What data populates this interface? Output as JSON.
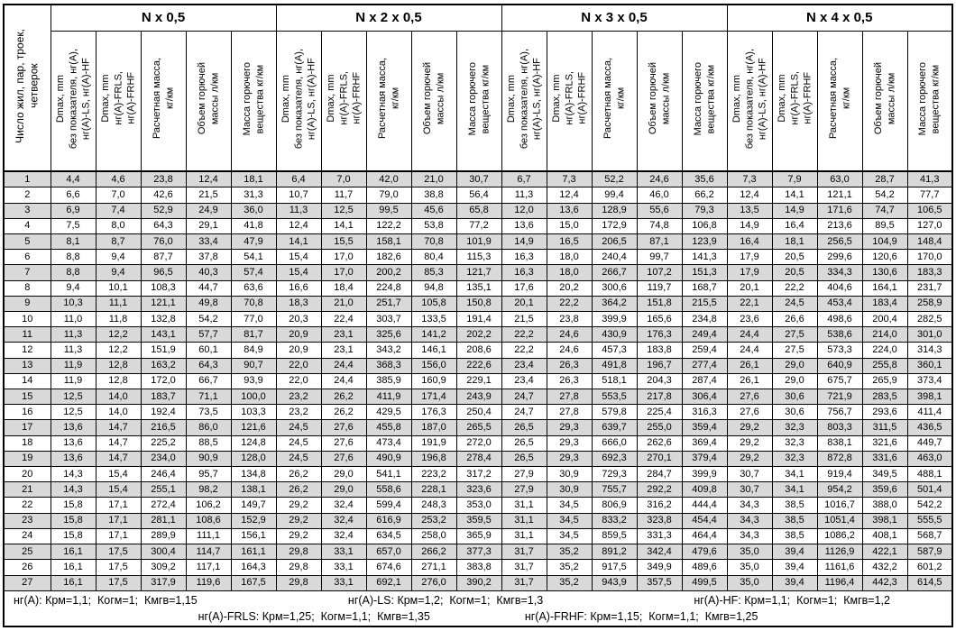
{
  "header": {
    "corner": "Число жил, пар, троек,\nчетверок",
    "groups": [
      "N x 0,5",
      "N x 2 x 0,5",
      "N x 3 x 0,5",
      "N x 4 x 0,5"
    ],
    "subcols": [
      "Dmax, mm\nбез показателя, нг(А),\nнг(А)-LS, нг(А)-HF",
      "Dmax, mm\nнг(А)-FRLS,\nнг(А)-FRHF",
      "Расчетная масса,\nкг/км",
      "Объем горючей\nмассы л/км",
      "Масса горючего\nвещества кг/км"
    ]
  },
  "rows": [
    [
      "1",
      "4,4",
      "4,6",
      "23,8",
      "12,4",
      "18,1",
      "6,4",
      "7,0",
      "42,0",
      "21,0",
      "30,7",
      "6,7",
      "7,3",
      "52,2",
      "24,6",
      "35,6",
      "7,3",
      "7,9",
      "63,0",
      "28,7",
      "41,3"
    ],
    [
      "2",
      "6,6",
      "7,0",
      "42,6",
      "21,5",
      "31,3",
      "10,7",
      "11,7",
      "79,0",
      "38,8",
      "56,4",
      "11,3",
      "12,4",
      "99,4",
      "46,0",
      "66,2",
      "12,4",
      "14,1",
      "121,1",
      "54,2",
      "77,7"
    ],
    [
      "3",
      "6,9",
      "7,4",
      "52,9",
      "24,9",
      "36,0",
      "11,3",
      "12,5",
      "99,5",
      "45,6",
      "65,8",
      "12,0",
      "13,6",
      "128,9",
      "55,6",
      "79,3",
      "13,5",
      "14,9",
      "171,6",
      "74,7",
      "106,5"
    ],
    [
      "4",
      "7,5",
      "8,0",
      "64,3",
      "29,1",
      "41,8",
      "12,4",
      "14,1",
      "122,2",
      "53,8",
      "77,2",
      "13,6",
      "15,0",
      "172,9",
      "74,8",
      "106,8",
      "14,9",
      "16,4",
      "213,6",
      "89,5",
      "127,0"
    ],
    [
      "5",
      "8,1",
      "8,7",
      "76,0",
      "33,4",
      "47,9",
      "14,1",
      "15,5",
      "158,1",
      "70,8",
      "101,9",
      "14,9",
      "16,5",
      "206,5",
      "87,1",
      "123,9",
      "16,4",
      "18,1",
      "256,5",
      "104,9",
      "148,4"
    ],
    [
      "6",
      "8,8",
      "9,4",
      "87,7",
      "37,8",
      "54,1",
      "15,4",
      "17,0",
      "182,6",
      "80,4",
      "115,3",
      "16,3",
      "18,0",
      "240,4",
      "99,7",
      "141,3",
      "17,9",
      "20,5",
      "299,6",
      "120,6",
      "170,0"
    ],
    [
      "7",
      "8,8",
      "9,4",
      "96,5",
      "40,3",
      "57,4",
      "15,4",
      "17,0",
      "200,2",
      "85,3",
      "121,7",
      "16,3",
      "18,0",
      "266,7",
      "107,2",
      "151,3",
      "17,9",
      "20,5",
      "334,3",
      "130,6",
      "183,3"
    ],
    [
      "8",
      "9,4",
      "10,1",
      "108,3",
      "44,7",
      "63,6",
      "16,6",
      "18,4",
      "224,8",
      "94,8",
      "135,1",
      "17,6",
      "20,2",
      "300,6",
      "119,7",
      "168,7",
      "20,1",
      "22,2",
      "404,6",
      "164,1",
      "231,7"
    ],
    [
      "9",
      "10,3",
      "11,1",
      "121,1",
      "49,8",
      "70,8",
      "18,3",
      "21,0",
      "251,7",
      "105,8",
      "150,8",
      "20,1",
      "22,2",
      "364,2",
      "151,8",
      "215,5",
      "22,1",
      "24,5",
      "453,4",
      "183,4",
      "258,9"
    ],
    [
      "10",
      "11,0",
      "11,8",
      "132,8",
      "54,2",
      "77,0",
      "20,3",
      "22,4",
      "303,7",
      "133,5",
      "191,4",
      "21,5",
      "23,8",
      "399,9",
      "165,6",
      "234,8",
      "23,6",
      "26,6",
      "498,6",
      "200,4",
      "282,5"
    ],
    [
      "11",
      "11,3",
      "12,2",
      "143,1",
      "57,7",
      "81,7",
      "20,9",
      "23,1",
      "325,6",
      "141,2",
      "202,2",
      "22,2",
      "24,6",
      "430,9",
      "176,3",
      "249,4",
      "24,4",
      "27,5",
      "538,6",
      "214,0",
      "301,0"
    ],
    [
      "12",
      "11,3",
      "12,2",
      "151,9",
      "60,1",
      "84,9",
      "20,9",
      "23,1",
      "343,2",
      "146,1",
      "208,6",
      "22,2",
      "24,6",
      "457,3",
      "183,8",
      "259,4",
      "24,4",
      "27,5",
      "573,3",
      "224,0",
      "314,3"
    ],
    [
      "13",
      "11,9",
      "12,8",
      "163,2",
      "64,3",
      "90,7",
      "22,0",
      "24,4",
      "368,3",
      "156,0",
      "222,6",
      "23,4",
      "26,3",
      "491,8",
      "196,7",
      "277,4",
      "26,1",
      "29,0",
      "640,9",
      "255,8",
      "360,1"
    ],
    [
      "14",
      "11,9",
      "12,8",
      "172,0",
      "66,7",
      "93,9",
      "22,0",
      "24,4",
      "385,9",
      "160,9",
      "229,1",
      "23,4",
      "26,3",
      "518,1",
      "204,3",
      "287,4",
      "26,1",
      "29,0",
      "675,7",
      "265,9",
      "373,4"
    ],
    [
      "15",
      "12,5",
      "14,0",
      "183,7",
      "71,1",
      "100,0",
      "23,2",
      "26,2",
      "411,9",
      "171,4",
      "243,9",
      "24,7",
      "27,8",
      "553,5",
      "217,8",
      "306,4",
      "27,6",
      "30,6",
      "721,9",
      "283,5",
      "398,1"
    ],
    [
      "16",
      "12,5",
      "14,0",
      "192,4",
      "73,5",
      "103,3",
      "23,2",
      "26,2",
      "429,5",
      "176,3",
      "250,4",
      "24,7",
      "27,8",
      "579,8",
      "225,4",
      "316,3",
      "27,6",
      "30,6",
      "756,7",
      "293,6",
      "411,4"
    ],
    [
      "17",
      "13,6",
      "14,7",
      "216,5",
      "86,0",
      "121,6",
      "24,5",
      "27,6",
      "455,8",
      "187,0",
      "265,5",
      "26,5",
      "29,3",
      "639,7",
      "255,0",
      "359,4",
      "29,2",
      "32,3",
      "803,3",
      "311,5",
      "436,5"
    ],
    [
      "18",
      "13,6",
      "14,7",
      "225,2",
      "88,5",
      "124,8",
      "24,5",
      "27,6",
      "473,4",
      "191,9",
      "272,0",
      "26,5",
      "29,3",
      "666,0",
      "262,6",
      "369,4",
      "29,2",
      "32,3",
      "838,1",
      "321,6",
      "449,7"
    ],
    [
      "19",
      "13,6",
      "14,7",
      "234,0",
      "90,9",
      "128,0",
      "24,5",
      "27,6",
      "490,9",
      "196,8",
      "278,4",
      "26,5",
      "29,3",
      "692,3",
      "270,1",
      "379,4",
      "29,2",
      "32,3",
      "872,8",
      "331,6",
      "463,0"
    ],
    [
      "20",
      "14,3",
      "15,4",
      "246,4",
      "95,7",
      "134,8",
      "26,2",
      "29,0",
      "541,1",
      "223,2",
      "317,2",
      "27,9",
      "30,9",
      "729,3",
      "284,7",
      "399,9",
      "30,7",
      "34,1",
      "919,4",
      "349,5",
      "488,1"
    ],
    [
      "21",
      "14,3",
      "15,4",
      "255,1",
      "98,2",
      "138,1",
      "26,2",
      "29,0",
      "558,6",
      "228,1",
      "323,6",
      "27,9",
      "30,9",
      "755,7",
      "292,2",
      "409,8",
      "30,7",
      "34,1",
      "954,2",
      "359,6",
      "501,4"
    ],
    [
      "22",
      "15,8",
      "17,1",
      "272,4",
      "106,2",
      "149,7",
      "29,2",
      "32,4",
      "599,4",
      "248,3",
      "353,0",
      "31,1",
      "34,5",
      "806,9",
      "316,2",
      "444,4",
      "34,3",
      "38,5",
      "1016,7",
      "388,0",
      "542,2"
    ],
    [
      "23",
      "15,8",
      "17,1",
      "281,1",
      "108,6",
      "152,9",
      "29,2",
      "32,4",
      "616,9",
      "253,2",
      "359,5",
      "31,1",
      "34,5",
      "833,2",
      "323,8",
      "454,4",
      "34,3",
      "38,5",
      "1051,4",
      "398,1",
      "555,5"
    ],
    [
      "24",
      "15,8",
      "17,1",
      "289,9",
      "111,1",
      "156,1",
      "29,2",
      "32,4",
      "634,5",
      "258,0",
      "365,9",
      "31,1",
      "34,5",
      "859,5",
      "331,3",
      "464,4",
      "34,3",
      "38,5",
      "1086,2",
      "408,1",
      "568,7"
    ],
    [
      "25",
      "16,1",
      "17,5",
      "300,4",
      "114,7",
      "161,1",
      "29,8",
      "33,1",
      "657,0",
      "266,2",
      "377,3",
      "31,7",
      "35,2",
      "891,2",
      "342,4",
      "479,6",
      "35,0",
      "39,4",
      "1126,9",
      "422,1",
      "587,9"
    ],
    [
      "26",
      "16,1",
      "17,5",
      "309,2",
      "117,1",
      "164,3",
      "29,8",
      "33,1",
      "674,6",
      "271,1",
      "383,8",
      "31,7",
      "35,2",
      "917,5",
      "349,9",
      "489,6",
      "35,0",
      "39,4",
      "1161,6",
      "432,2",
      "601,2"
    ],
    [
      "27",
      "16,1",
      "17,5",
      "317,9",
      "119,6",
      "167,5",
      "29,8",
      "33,1",
      "692,1",
      "276,0",
      "390,2",
      "31,7",
      "35,2",
      "943,9",
      "357,5",
      "499,5",
      "35,0",
      "39,4",
      "1196,4",
      "442,3",
      "614,5"
    ]
  ],
  "footnotes": {
    "line1": [
      "нг(А): Крм=1,1;  Когм=1;  Кмгв=1,15",
      "нг(А)-LS: Крм=1,2;  Когм=1;  Кмгв=1,3",
      "нг(А)-HF: Крм=1,1;  Когм=1;  Кмгв=1,2"
    ],
    "line2": [
      "нг(А)-FRLS: Крм=1,25;  Когм=1,1;  Кмгв=1,35",
      "нг(А)-FRHF: Крм=1,15;  Когм=1,1;  Кмгв=1,25"
    ]
  },
  "colors": {
    "stripe": "#d9d9d9",
    "border": "#000000",
    "background": "#ffffff"
  }
}
